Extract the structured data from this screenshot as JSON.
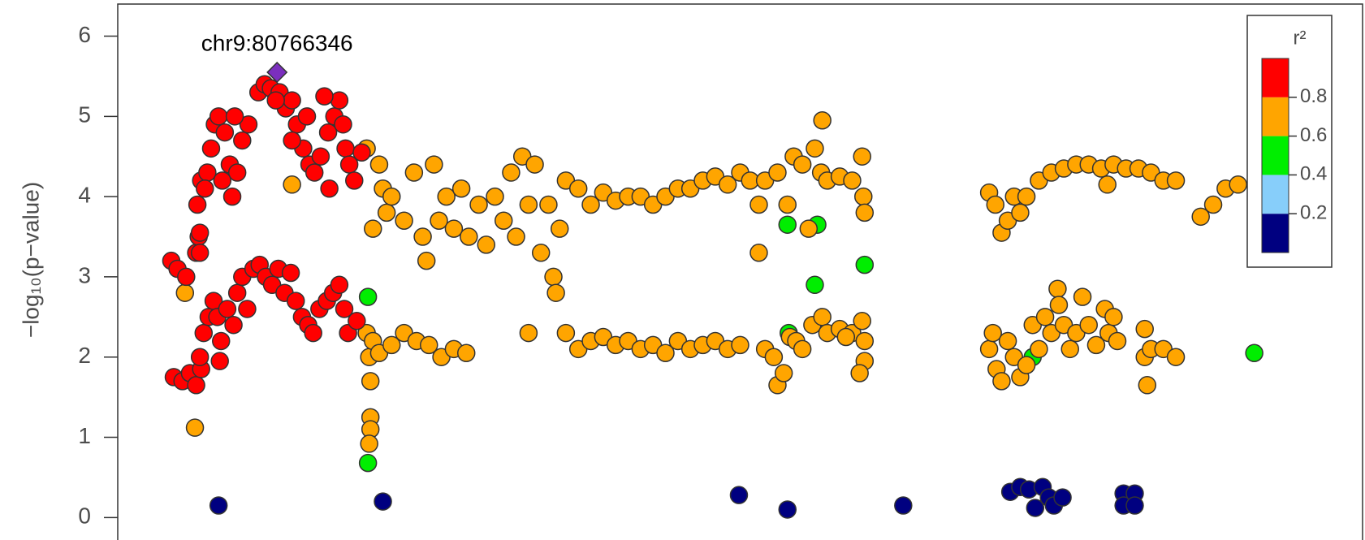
{
  "chart_data": {
    "type": "scatter",
    "ylabel": "−log₁₀(p−value)",
    "annotation": {
      "text": "chr9:80766346",
      "series": 5,
      "index": 0
    },
    "xlim": [
      0,
      100
    ],
    "ylim": [
      -0.28,
      6.4
    ],
    "yticks": [
      0,
      1,
      2,
      3,
      4,
      5,
      6
    ],
    "legend": {
      "title": "r²",
      "lim": [
        0,
        1
      ],
      "ticks": [
        0.2,
        0.4,
        0.6,
        0.8
      ],
      "colors": [
        "#000080",
        "#87cefa",
        "#00ee00",
        "#ffa500",
        "#ff0000"
      ],
      "corner": "top-right"
    },
    "series": [
      {
        "color": "#000080",
        "marker": "circle",
        "x": [
          8.1,
          21.3,
          49.9,
          53.8,
          63.1,
          71.7,
          72.5,
          73.2,
          73.7,
          74.3,
          74.8,
          75.2,
          75.9,
          80.8,
          80.8,
          81.7,
          81.7
        ],
        "values": [
          0.15,
          0.2,
          0.28,
          0.1,
          0.15,
          0.32,
          0.38,
          0.35,
          0.12,
          0.38,
          0.25,
          0.15,
          0.25,
          0.3,
          0.15,
          0.3,
          0.15
        ]
      },
      {
        "color": "#00ee00",
        "marker": "circle",
        "x": [
          20.1,
          20.1,
          53.8,
          56.2,
          56.0,
          53.9,
          60.0,
          73.5,
          91.3
        ],
        "values": [
          2.75,
          0.68,
          3.65,
          3.65,
          2.9,
          2.3,
          3.15,
          2.0,
          2.05
        ]
      },
      {
        "color": "#ffa500",
        "marker": "circle",
        "x": [
          6.2,
          5.4,
          14.0,
          20.0,
          21.0,
          21.3,
          20.5,
          21.6,
          22.0,
          23.0,
          23.8,
          24.5,
          24.8,
          25.4,
          25.8,
          26.4,
          27.0,
          27.6,
          28.2,
          29.0,
          29.6,
          30.3,
          31.0,
          31.6,
          32.0,
          32.5,
          33.0,
          33.5,
          34.0,
          34.6,
          35.0,
          35.2,
          35.5,
          36.0,
          37.0,
          38.0,
          39.0,
          40.0,
          41.0,
          42.0,
          43.0,
          44.0,
          45.0,
          46.0,
          47.0,
          48.0,
          49.0,
          50.0,
          50.8,
          51.5,
          51.5,
          52.0,
          53.0,
          53.8,
          54.3,
          55.0,
          55.5,
          56.0,
          56.5,
          56.6,
          57.0,
          58.0,
          59.0,
          59.8,
          59.9,
          60.0,
          20.0,
          20.2,
          20.3,
          20.3,
          20.3,
          20.2,
          20.5,
          21.0,
          22.0,
          23.0,
          24.0,
          25.0,
          26.0,
          27.0,
          28.0,
          33.0,
          36.0,
          37.0,
          38.0,
          39.0,
          40.0,
          41.0,
          42.0,
          43.0,
          44.0,
          45.0,
          46.0,
          47.0,
          48.0,
          49.0,
          50.0,
          52.0,
          52.7,
          53.0,
          53.5,
          54.0,
          54.5,
          55.0,
          55.8,
          56.6,
          57.0,
          58.0,
          59.0,
          59.8,
          60.0,
          60.0,
          59.6,
          58.5,
          70.0,
          70.5,
          71.0,
          71.5,
          72.0,
          72.5,
          73.0,
          74.0,
          75.0,
          76.0,
          77.0,
          78.0,
          79.0,
          79.5,
          80.0,
          81.0,
          82.0,
          83.0,
          84.0,
          85.0,
          87.0,
          88.0,
          89.0,
          90.0,
          70.0,
          70.3,
          70.6,
          71.0,
          71.5,
          72.0,
          72.5,
          73.0,
          73.5,
          74.0,
          74.5,
          75.0,
          75.5,
          75.6,
          76.0,
          76.5,
          77.0,
          77.5,
          78.0,
          78.6,
          79.3,
          79.6,
          80.0,
          80.3,
          82.5,
          82.5,
          82.7,
          83.0,
          84.0,
          85.0
        ],
        "values": [
          1.12,
          2.8,
          4.15,
          4.6,
          4.4,
          4.1,
          3.6,
          3.8,
          4.0,
          3.7,
          4.3,
          3.5,
          3.2,
          4.4,
          3.7,
          4.0,
          3.6,
          4.1,
          3.5,
          3.9,
          3.4,
          4.0,
          3.7,
          4.3,
          3.5,
          4.5,
          3.9,
          4.4,
          3.3,
          3.9,
          3.0,
          2.8,
          3.6,
          4.2,
          4.1,
          3.9,
          4.05,
          3.95,
          4.0,
          4.0,
          3.9,
          4.0,
          4.1,
          4.1,
          4.2,
          4.25,
          4.15,
          4.3,
          4.2,
          3.9,
          3.3,
          4.2,
          4.3,
          3.9,
          4.5,
          4.4,
          3.6,
          4.6,
          4.3,
          4.95,
          4.2,
          4.25,
          4.2,
          4.5,
          4.0,
          3.8,
          2.3,
          2.0,
          1.7,
          1.25,
          1.1,
          0.92,
          2.2,
          2.05,
          2.15,
          2.3,
          2.2,
          2.15,
          2.0,
          2.1,
          2.05,
          2.3,
          2.3,
          2.1,
          2.2,
          2.25,
          2.15,
          2.2,
          2.1,
          2.15,
          2.05,
          2.2,
          2.1,
          2.15,
          2.2,
          2.1,
          2.15,
          2.1,
          2.0,
          1.65,
          1.8,
          2.25,
          2.2,
          2.1,
          2.4,
          2.5,
          2.3,
          2.35,
          2.3,
          2.45,
          2.2,
          1.95,
          1.8,
          2.25,
          4.05,
          3.9,
          3.55,
          3.7,
          4.0,
          3.8,
          4.0,
          4.2,
          4.3,
          4.35,
          4.4,
          4.4,
          4.35,
          4.15,
          4.4,
          4.35,
          4.35,
          4.3,
          4.2,
          4.2,
          3.75,
          3.9,
          4.1,
          4.15,
          2.1,
          2.3,
          1.85,
          1.7,
          2.2,
          2.0,
          1.75,
          1.9,
          2.4,
          2.1,
          2.5,
          2.3,
          2.85,
          2.65,
          2.4,
          2.1,
          2.3,
          2.75,
          2.4,
          2.15,
          2.6,
          2.3,
          2.5,
          2.2,
          2.35,
          2.0,
          1.65,
          2.1,
          2.1,
          2.0
        ]
      },
      {
        "color": "#ff0000",
        "marker": "circle",
        "x": [
          4.3,
          4.8,
          5.5,
          6.3,
          6.5,
          6.4,
          6.7,
          7.2,
          7.5,
          7.8,
          8.1,
          8.6,
          9.0,
          9.2,
          9.6,
          10.0,
          10.5,
          9.4,
          8.4,
          7.0,
          11.3,
          11.8,
          12.3,
          13.0,
          13.5,
          14.0,
          14.4,
          14.9,
          15.4,
          15.8,
          16.3,
          16.9,
          17.4,
          17.8,
          18.1,
          18.3,
          18.6,
          19.0,
          19.6,
          15.2,
          12.7,
          16.6,
          17.0,
          14.0
        ],
        "values": [
          3.2,
          3.1,
          3.0,
          3.3,
          3.5,
          3.9,
          4.2,
          4.3,
          4.6,
          4.9,
          5.0,
          4.8,
          4.4,
          4.0,
          4.3,
          4.7,
          4.9,
          5.0,
          4.2,
          4.1,
          5.3,
          5.4,
          5.35,
          5.3,
          5.1,
          5.2,
          4.9,
          4.6,
          4.4,
          4.3,
          4.5,
          4.8,
          5.0,
          5.2,
          4.9,
          4.6,
          4.4,
          4.2,
          4.55,
          5.0,
          5.2,
          5.25,
          4.1,
          4.7
        ]
      },
      {
        "color": "#ff0000",
        "marker": "circle",
        "x": [
          4.5,
          5.2,
          5.8,
          6.3,
          6.7,
          6.6,
          6.9,
          7.3,
          7.7,
          8.0,
          8.3,
          8.8,
          9.3,
          9.6,
          10.0,
          10.4,
          10.9,
          11.4,
          11.9,
          12.4,
          12.9,
          13.4,
          13.9,
          14.3,
          14.8,
          15.3,
          15.7,
          16.2,
          16.8,
          17.3,
          17.8,
          18.2,
          18.5,
          19.2,
          8.2,
          6.6,
          6.6
        ],
        "values": [
          1.75,
          1.7,
          1.8,
          1.65,
          1.85,
          2.0,
          2.3,
          2.5,
          2.7,
          2.5,
          2.2,
          2.6,
          2.4,
          2.8,
          3.0,
          2.6,
          3.1,
          3.15,
          3.0,
          2.9,
          3.1,
          2.8,
          3.05,
          2.7,
          2.5,
          2.4,
          2.3,
          2.6,
          2.7,
          2.8,
          2.9,
          2.6,
          2.3,
          2.45,
          1.95,
          3.3,
          3.55
        ]
      },
      {
        "color": "#7b2fbe",
        "marker": "diamond",
        "x": [
          12.8
        ],
        "values": [
          5.55
        ]
      }
    ]
  }
}
